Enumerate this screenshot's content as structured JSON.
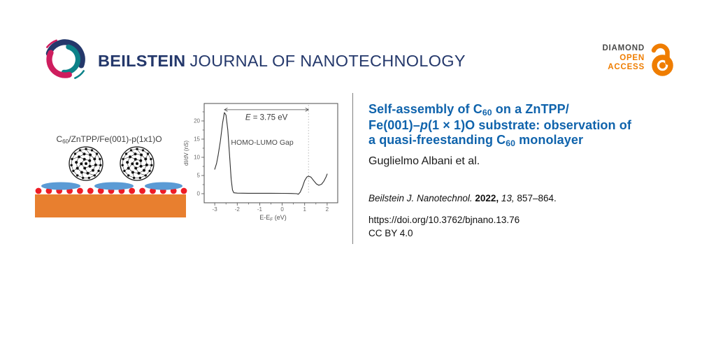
{
  "header": {
    "journal_bold": "BEILSTEIN",
    "journal_rest": "JOURNAL OF NANOTECHNOLOGY",
    "brand": {
      "navy": "#24386b",
      "teal": "#0c8289",
      "crimson": "#ce1d5e"
    },
    "open_access": {
      "line1": "DIAMOND",
      "line2": "OPEN",
      "line3": "ACCESS",
      "gray": "#4a4a49",
      "orange": "#ef7d00"
    }
  },
  "abstract_figure": {
    "schematic": {
      "label_segments": [
        {
          "t": "C"
        },
        {
          "t": "60",
          "style": "sub"
        },
        {
          "t": "/ZnTPP/Fe(001)-p(1x1)O"
        }
      ],
      "colors": {
        "substrate": "#e87f2f",
        "oxygen": "#ee1c25",
        "molecule": "#5b9bd5"
      },
      "oxygen_dot_count": 15,
      "molecule_count": 3,
      "fullerene_count": 2
    },
    "chart_data": {
      "type": "line",
      "title": "",
      "xlabel": {
        "pre": "E-E",
        "sub": "F",
        "post": " (eV)"
      },
      "ylabel": "dI/dV (nS)",
      "xlim": [
        -3.47,
        2.47
      ],
      "ylim": [
        -2.5,
        24.8
      ],
      "xticks": [
        -3,
        -2,
        -1,
        0,
        1,
        2
      ],
      "yticks": [
        0,
        5,
        10,
        15,
        20
      ],
      "xminor": [
        -2.5,
        -1.5,
        -0.5,
        0.5,
        1.5
      ],
      "yminor": [
        2.5,
        7.5,
        12.5,
        17.5,
        22.5
      ],
      "grid": false,
      "legend": false,
      "series": [
        {
          "name": "dI/dV spectrum",
          "color": "#2f2f2f",
          "points": [
            [
              -3.0,
              6.7
            ],
            [
              -2.92,
              8.3
            ],
            [
              -2.85,
              10.5
            ],
            [
              -2.75,
              14.5
            ],
            [
              -2.65,
              19.5
            ],
            [
              -2.57,
              22.3
            ],
            [
              -2.5,
              21.6
            ],
            [
              -2.42,
              17.5
            ],
            [
              -2.33,
              9.5
            ],
            [
              -2.27,
              4.0
            ],
            [
              -2.21,
              1.0
            ],
            [
              -2.15,
              0.25
            ],
            [
              -2.0,
              0.15
            ],
            [
              -1.5,
              0.12
            ],
            [
              -1.0,
              0.12
            ],
            [
              -0.5,
              0.12
            ],
            [
              0.0,
              0.1
            ],
            [
              0.4,
              0.05
            ],
            [
              0.65,
              0.0
            ],
            [
              0.72,
              -0.15
            ],
            [
              0.8,
              0.4
            ],
            [
              0.9,
              1.8
            ],
            [
              1.0,
              3.6
            ],
            [
              1.1,
              4.6
            ],
            [
              1.17,
              4.8
            ],
            [
              1.28,
              4.55
            ],
            [
              1.4,
              3.6
            ],
            [
              1.52,
              2.7
            ],
            [
              1.63,
              2.3
            ],
            [
              1.75,
              2.6
            ],
            [
              1.85,
              3.4
            ],
            [
              1.95,
              4.6
            ],
            [
              2.0,
              5.4
            ]
          ]
        }
      ],
      "annotations": {
        "energy_label": {
          "italic": "E",
          "rest": " = 3.75 eV"
        },
        "gap_label": "HOMO-LUMO Gap",
        "arrow": {
          "x1": -2.57,
          "x2": 1.17,
          "y": 23.1
        },
        "vline_x": 1.17
      }
    }
  },
  "article": {
    "title_color": "#0f63ac",
    "title_lines": [
      [
        {
          "t": "Self-assembly of C"
        },
        {
          "t": "60",
          "style": "sub"
        },
        {
          "t": " on a ZnTPP/"
        }
      ],
      [
        {
          "t": "Fe(001)–"
        },
        {
          "t": "p",
          "style": "i"
        },
        {
          "t": "(1 × 1)O substrate: observation of"
        }
      ],
      [
        {
          "t": "a quasi-freestanding C"
        },
        {
          "t": "60",
          "style": "sub"
        },
        {
          "t": " monolayer"
        }
      ]
    ],
    "authors": "Guglielmo Albani et al.",
    "citation_segments": [
      {
        "t": "Beilstein J. Nanotechnol. ",
        "style": "i"
      },
      {
        "t": "2022, ",
        "style": "b"
      },
      {
        "t": "13, ",
        "style": "i"
      },
      {
        "t": "857–864."
      }
    ],
    "doi": "https://doi.org/10.3762/bjnano.13.76",
    "license": "CC BY 4.0"
  }
}
